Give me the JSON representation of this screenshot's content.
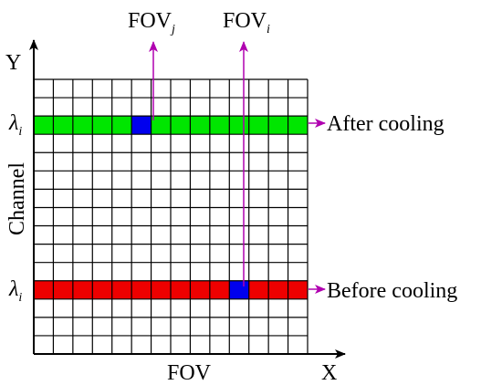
{
  "grid": {
    "cols": 14,
    "rows": 15,
    "green_row": 2,
    "red_row": 11,
    "blue_cells": [
      {
        "row": 2,
        "col": 5
      },
      {
        "row": 11,
        "col": 10
      }
    ]
  },
  "labels": {
    "y_axis": "Y",
    "x_axis": "X",
    "x_title": "FOV",
    "y_title": "Channel",
    "fov_j": {
      "base": "FOV",
      "sub": "j"
    },
    "fov_i": {
      "base": "FOV",
      "sub": "i"
    },
    "lambda_top": {
      "base": "λ",
      "sub": "i"
    },
    "lambda_bottom": {
      "base": "λ",
      "sub": "i"
    },
    "after": "After cooling",
    "before": "Before cooling"
  },
  "colors": {
    "green": "#00e600",
    "red": "#ee0000",
    "blue": "#0000ee",
    "arrow": "#b000b0"
  }
}
